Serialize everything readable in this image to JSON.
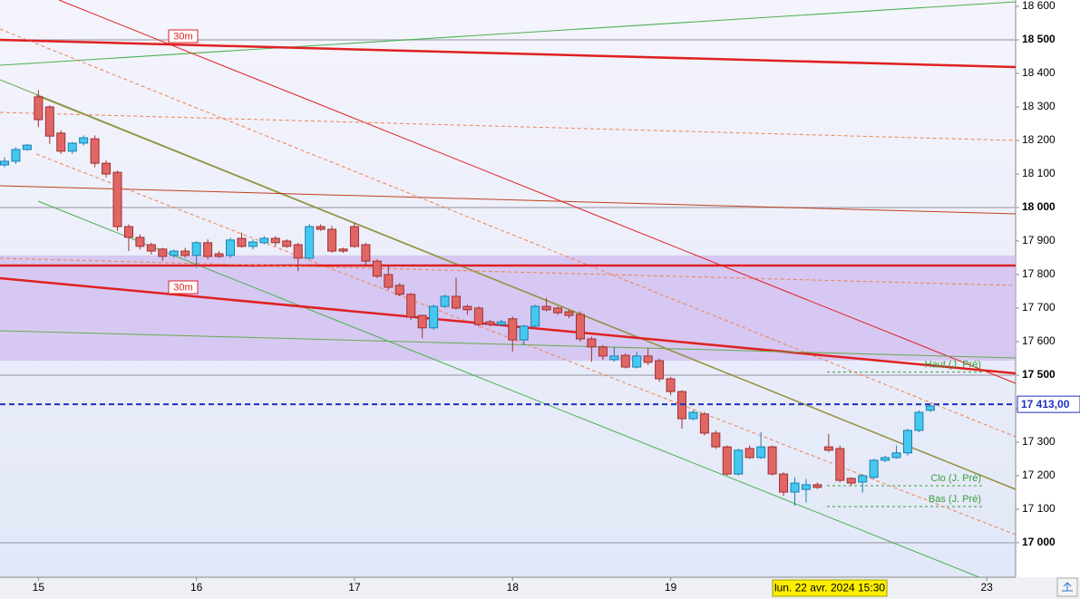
{
  "chart_data": {
    "type": "candlestick",
    "open": [
      18127,
      18138,
      18173,
      18330,
      18300,
      18222,
      18168,
      18192,
      18205,
      18132,
      18105,
      17943,
      17911,
      17889,
      17876,
      17857,
      17870,
      17857,
      17895,
      17862,
      17857,
      17908,
      17884,
      17895,
      17908,
      17900,
      17889,
      17849,
      17943,
      17935,
      17876,
      17943,
      17889,
      17840,
      17800,
      17768,
      17741,
      17678,
      17641,
      17705,
      17735,
      17705,
      17700,
      17659,
      17651,
      17668,
      17605,
      17646,
      17705,
      17700,
      17689,
      17681,
      17608,
      17584,
      17546,
      17559,
      17524,
      17557,
      17543,
      17489,
      17451,
      17370,
      17384,
      17327,
      17286,
      17205,
      17281,
      17254,
      17286,
      17205,
      17151,
      17159,
      17173,
      17286,
      17281,
      17192,
      17181,
      17195,
      17246,
      17254,
      17268,
      17335,
      17395
    ],
    "high": [
      18150,
      18180,
      18190,
      18350,
      18305,
      18230,
      18195,
      18215,
      18215,
      18140,
      18110,
      17950,
      17920,
      17895,
      17880,
      17875,
      17880,
      17900,
      17905,
      17870,
      17910,
      17925,
      17905,
      17915,
      17915,
      17905,
      17895,
      17950,
      17950,
      17945,
      17880,
      17955,
      17895,
      17845,
      17830,
      17775,
      17745,
      17680,
      17710,
      17740,
      17790,
      17710,
      17705,
      17665,
      17665,
      17675,
      17650,
      17710,
      17730,
      17705,
      17695,
      17690,
      17615,
      17590,
      17585,
      17565,
      17570,
      17580,
      17550,
      17495,
      17455,
      17395,
      17390,
      17335,
      17290,
      17280,
      17290,
      17330,
      17290,
      17210,
      17195,
      17190,
      17180,
      17325,
      17290,
      17195,
      17205,
      17250,
      17260,
      17290,
      17340,
      17395,
      17415
    ],
    "low": [
      18120,
      18130,
      18170,
      18240,
      18190,
      18160,
      18160,
      18185,
      18120,
      18090,
      17930,
      17870,
      17875,
      17860,
      17840,
      17850,
      17850,
      17820,
      17845,
      17850,
      17850,
      17880,
      17875,
      17890,
      17885,
      17880,
      17810,
      17845,
      17930,
      17865,
      17865,
      17880,
      17825,
      17790,
      17755,
      17735,
      17665,
      17610,
      17635,
      17700,
      17695,
      17680,
      17645,
      17645,
      17645,
      17570,
      17590,
      17640,
      17690,
      17680,
      17670,
      17600,
      17540,
      17545,
      17540,
      17520,
      17520,
      17530,
      17480,
      17440,
      17340,
      17365,
      17320,
      17280,
      17200,
      17200,
      17250,
      17250,
      17200,
      17140,
      17110,
      17120,
      17160,
      17270,
      17180,
      17170,
      17150,
      17190,
      17240,
      17250,
      17260,
      17330,
      17390
    ],
    "close": [
      18138,
      18173,
      18186,
      18262,
      18213,
      18168,
      18192,
      18208,
      18132,
      18100,
      17943,
      17911,
      17884,
      17870,
      17854,
      17870,
      17857,
      17895,
      17854,
      17854,
      17903,
      17884,
      17897,
      17908,
      17895,
      17884,
      17849,
      17943,
      17935,
      17870,
      17870,
      17884,
      17840,
      17795,
      17762,
      17741,
      17673,
      17641,
      17705,
      17735,
      17700,
      17695,
      17651,
      17651,
      17659,
      17605,
      17646,
      17705,
      17695,
      17686,
      17678,
      17608,
      17584,
      17557,
      17557,
      17524,
      17557,
      17538,
      17489,
      17451,
      17370,
      17389,
      17327,
      17286,
      17205,
      17276,
      17254,
      17286,
      17205,
      17151,
      17178,
      17173,
      17165,
      17276,
      17186,
      17178,
      17200,
      17246,
      17254,
      17268,
      17335,
      17389,
      17408
    ],
    "up_color": "#44c8f0",
    "down_color": "#e06666",
    "ylim": [
      16897,
      18619
    ],
    "yticks": [
      {
        "value": 18600,
        "label": "18 600"
      },
      {
        "value": 18500,
        "label": "18 500"
      },
      {
        "value": 18400,
        "label": "18 400"
      },
      {
        "value": 18300,
        "label": "18 300"
      },
      {
        "value": 18200,
        "label": "18 200"
      },
      {
        "value": 18100,
        "label": "18 100"
      },
      {
        "value": 18000,
        "label": "18 000"
      },
      {
        "value": 17900,
        "label": "17 900"
      },
      {
        "value": 17800,
        "label": "17 800"
      },
      {
        "value": 17700,
        "label": "17 700"
      },
      {
        "value": 17600,
        "label": "17 600"
      },
      {
        "value": 17500,
        "label": "17 500"
      },
      {
        "value": 17400,
        "label": "17 400"
      },
      {
        "value": 17300,
        "label": "17 300"
      },
      {
        "value": 17200,
        "label": "17 200"
      },
      {
        "value": 17100,
        "label": "17 100"
      },
      {
        "value": 17000,
        "label": "17 000"
      }
    ],
    "xticks": [
      {
        "value": 3,
        "label": "15"
      },
      {
        "value": 17,
        "label": "16"
      },
      {
        "value": 31,
        "label": "17"
      },
      {
        "value": 45,
        "label": "18"
      },
      {
        "value": 59,
        "label": "19"
      },
      {
        "value": 87,
        "label": "23"
      }
    ],
    "zone": [
      17543,
      17857
    ],
    "last_price": {
      "value": 17413,
      "label": "17 413,00"
    },
    "levels": [
      {
        "value": 17509,
        "label": "Haut (J. Pré)"
      },
      {
        "value": 17170,
        "label": "Clo (J. Pré)"
      },
      {
        "value": 17108,
        "label": "Bas (J. Pré)"
      }
    ],
    "annotations": [
      "30m",
      "30m"
    ],
    "crosshair_label": "lun. 22 avr. 2024 15:30"
  }
}
